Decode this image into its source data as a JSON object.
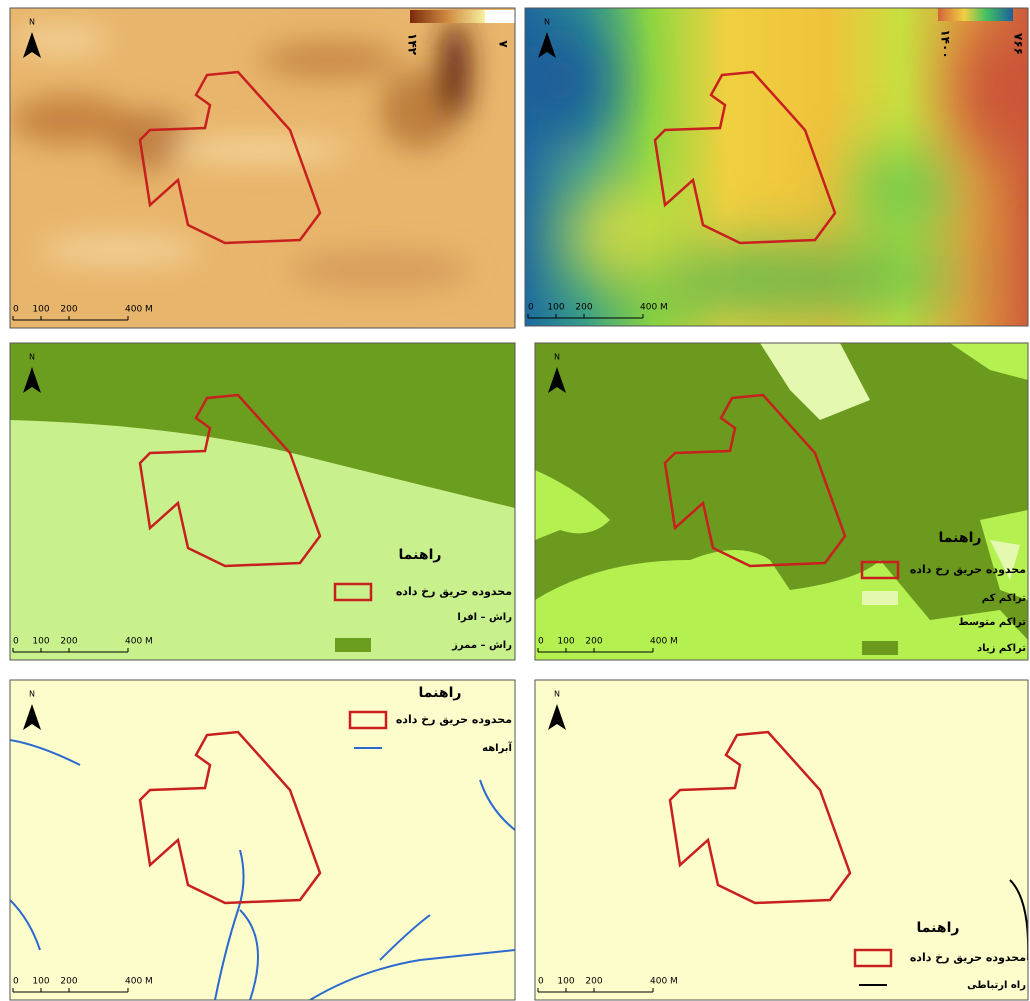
{
  "panels": [
    {
      "north": "N",
      "scale": [
        "0",
        "100",
        "200",
        "400 M"
      ],
      "colorbar": [
        "۱۴۲",
        "۷"
      ]
    },
    {
      "north": "N",
      "scale": [
        "0",
        "100",
        "200",
        "400 M"
      ],
      "colorbar": [
        "۱۴۰۰",
        "۷۶۶"
      ]
    },
    {
      "north": "N",
      "scale": [
        "0",
        "100",
        "200",
        "400 M"
      ],
      "legend": {
        "title": "راهنما",
        "items": [
          {
            "label": "محدوده حریق رخ داده",
            "type": "outline",
            "color": "#c8201e"
          },
          {
            "label": "راش – افرا",
            "type": "fill",
            "color": "#c8f08c"
          },
          {
            "label": "راش – ممرز",
            "type": "fill",
            "color": "#6b9e1f"
          }
        ]
      }
    },
    {
      "north": "N",
      "scale": [
        "0",
        "100",
        "200",
        "400 M"
      ],
      "legend": {
        "title": "راهنما",
        "items": [
          {
            "label": "محدوده حریق رخ داده",
            "type": "outline",
            "color": "#c8201e"
          },
          {
            "label": "تراکم کم",
            "type": "fill",
            "color": "#e4f8b0"
          },
          {
            "label": "تراکم متوسط",
            "type": "fill",
            "color": "#b4f050"
          },
          {
            "label": "تراکم زیاد",
            "type": "fill",
            "color": "#6b9a1e"
          }
        ]
      }
    },
    {
      "north": "N",
      "scale": [
        "0",
        "100",
        "200",
        "400 M"
      ],
      "legend": {
        "title": "راهنما",
        "items": [
          {
            "label": "محدوده حریق رخ داده",
            "type": "outline",
            "color": "#c8201e"
          },
          {
            "label": "آبراهه",
            "type": "line",
            "color": "#2a6ad0"
          }
        ]
      }
    },
    {
      "north": "N",
      "scale": [
        "0",
        "100",
        "200",
        "400 M"
      ],
      "legend": {
        "title": "راهنما",
        "items": [
          {
            "label": "محدوده حریق رخ داده",
            "type": "outline",
            "color": "#c8201e"
          },
          {
            "label": "راه ارتباطی",
            "type": "line",
            "color": "#000000"
          }
        ]
      }
    }
  ]
}
